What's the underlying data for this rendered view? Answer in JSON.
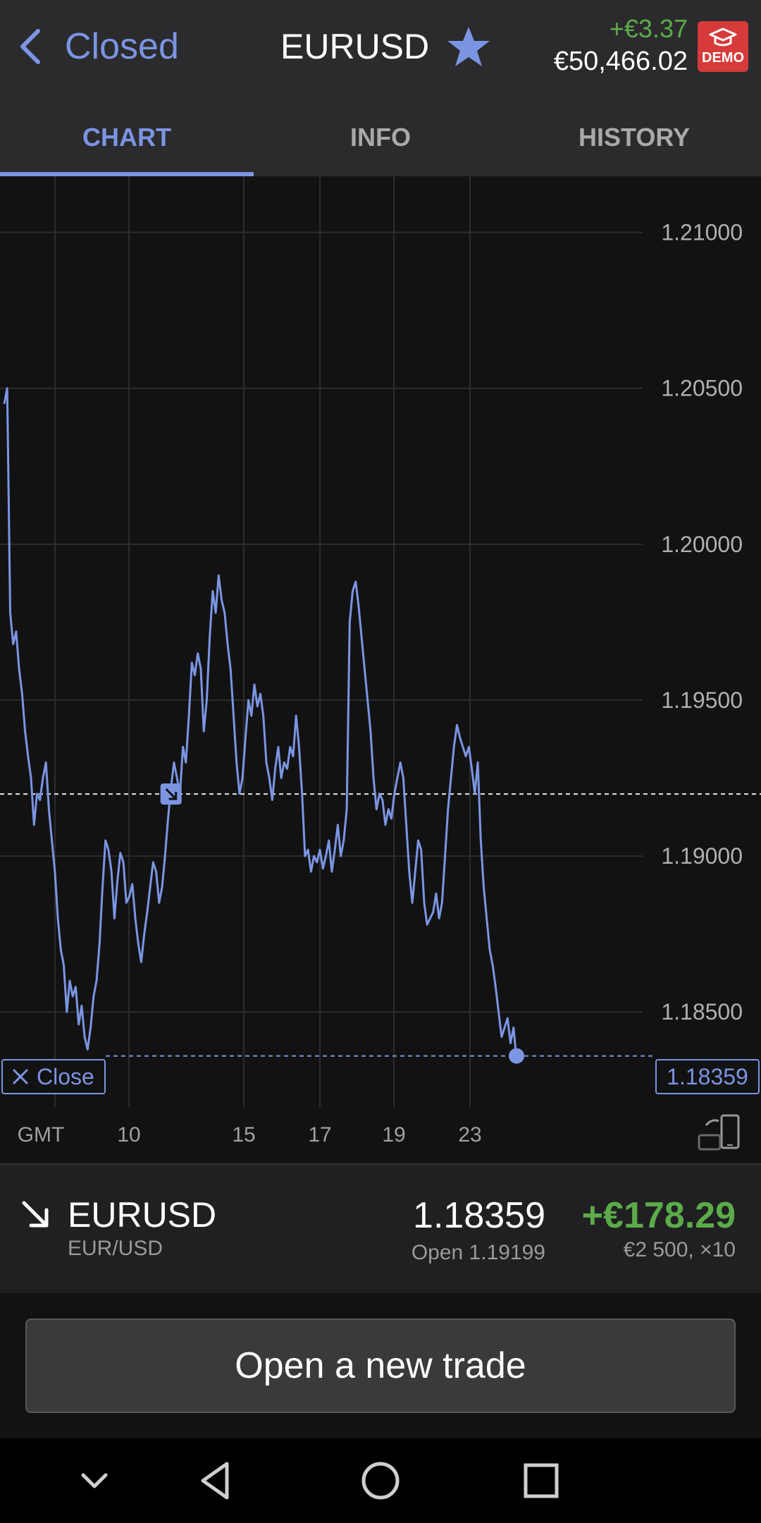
{
  "header": {
    "back_label": "Closed",
    "title": "EURUSD",
    "balance_change": "+€3.37",
    "balance_amount": "€50,466.02",
    "demo_label": "DEMO"
  },
  "tabs": [
    {
      "label": "CHART",
      "active": true
    },
    {
      "label": "INFO",
      "active": false
    },
    {
      "label": "HISTORY",
      "active": false
    }
  ],
  "chart_data": {
    "type": "line",
    "x_tick_labels": [
      "GMT",
      "10",
      "15",
      "17",
      "19",
      "23"
    ],
    "y_tick_labels": [
      "1.21000",
      "1.20500",
      "1.20000",
      "1.19500",
      "1.19000",
      "1.18500"
    ],
    "y_ticks": [
      1.21,
      1.205,
      1.2,
      1.195,
      1.19,
      1.185
    ],
    "ylim": [
      1.1815,
      1.2118
    ],
    "open_price": 1.19199,
    "current_price": 1.18359,
    "current_price_label": "1.18359",
    "close_label": "Close",
    "series": [
      {
        "values": [
          1.2045,
          1.205,
          1.1978,
          1.1968,
          1.1972,
          1.196,
          1.1952,
          1.194,
          1.1932,
          1.1925,
          1.191,
          1.192,
          1.1918,
          1.1925,
          1.193,
          1.1915,
          1.1905,
          1.1895,
          1.188,
          1.187,
          1.1865,
          1.185,
          1.186,
          1.1855,
          1.1858,
          1.1846,
          1.1852,
          1.1842,
          1.1838,
          1.1845,
          1.1855,
          1.186,
          1.1872,
          1.189,
          1.1905,
          1.1902,
          1.1895,
          1.188,
          1.1892,
          1.1901,
          1.1898,
          1.1885,
          1.1887,
          1.1891,
          1.188,
          1.1872,
          1.1866,
          1.1875,
          1.1882,
          1.189,
          1.1898,
          1.1895,
          1.1885,
          1.189,
          1.19,
          1.1912,
          1.1922,
          1.193,
          1.1925,
          1.192,
          1.1935,
          1.193,
          1.1945,
          1.1962,
          1.1958,
          1.1965,
          1.196,
          1.194,
          1.195,
          1.197,
          1.1985,
          1.1978,
          1.199,
          1.1982,
          1.1978,
          1.1968,
          1.196,
          1.1945,
          1.193,
          1.192,
          1.1925,
          1.1938,
          1.195,
          1.1945,
          1.1955,
          1.1948,
          1.1952,
          1.1945,
          1.193,
          1.1925,
          1.1918,
          1.1928,
          1.1935,
          1.1925,
          1.193,
          1.1928,
          1.1935,
          1.1932,
          1.1945,
          1.1935,
          1.192,
          1.19,
          1.1902,
          1.1895,
          1.19,
          1.1898,
          1.1902,
          1.1896,
          1.19,
          1.1905,
          1.1895,
          1.1902,
          1.191,
          1.19,
          1.1905,
          1.1915,
          1.1975,
          1.1985,
          1.1988,
          1.198,
          1.197,
          1.196,
          1.195,
          1.194,
          1.1925,
          1.1915,
          1.192,
          1.1918,
          1.191,
          1.1915,
          1.1912,
          1.192,
          1.1925,
          1.193,
          1.1925,
          1.191,
          1.1895,
          1.1885,
          1.1895,
          1.1905,
          1.1902,
          1.1885,
          1.1878,
          1.188,
          1.1882,
          1.1888,
          1.188,
          1.1885,
          1.19,
          1.1915,
          1.1925,
          1.1935,
          1.1942,
          1.1938,
          1.1935,
          1.1932,
          1.1935,
          1.1928,
          1.192,
          1.193,
          1.1905,
          1.189,
          1.188,
          1.187,
          1.1865,
          1.1858,
          1.185,
          1.1842,
          1.1845,
          1.1848,
          1.184,
          1.1845,
          1.1835
        ]
      }
    ]
  },
  "position": {
    "symbol": "EURUSD",
    "pair": "EUR/USD",
    "price": "1.18359",
    "open": "Open 1.19199",
    "pnl": "+€178.29",
    "size": "€2 500, ×10"
  },
  "cta_label": "Open a new trade",
  "icons": {
    "back": "chevron-left-icon",
    "favorite": "star-icon",
    "demo": "graduation-cap-icon",
    "direction": "arrow-down-right-icon",
    "rotate": "rotate-device-icon",
    "nav": [
      "chevron-down-icon",
      "back-triangle-icon",
      "home-circle-icon",
      "recents-square-icon"
    ]
  },
  "colors": {
    "accent": "#7b95e3",
    "positive": "#5cab4a",
    "demo_badge": "#d63a3a",
    "background": "#121212",
    "header": "#2b2b2d"
  }
}
